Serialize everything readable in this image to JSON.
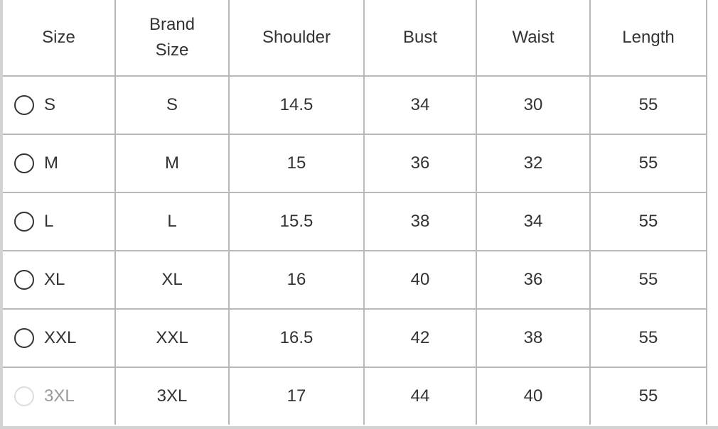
{
  "table": {
    "headers": {
      "size": "Size",
      "brand_size_line1": "Brand",
      "brand_size_line2": "Size",
      "shoulder": "Shoulder",
      "bust": "Bust",
      "waist": "Waist",
      "length": "Length"
    },
    "rows": [
      {
        "size": "S",
        "brand_size": "S",
        "shoulder": "14.5",
        "bust": "34",
        "waist": "30",
        "length": "55",
        "available": true
      },
      {
        "size": "M",
        "brand_size": "M",
        "shoulder": "15",
        "bust": "36",
        "waist": "32",
        "length": "55",
        "available": true
      },
      {
        "size": "L",
        "brand_size": "L",
        "shoulder": "15.5",
        "bust": "38",
        "waist": "34",
        "length": "55",
        "available": true
      },
      {
        "size": "XL",
        "brand_size": "XL",
        "shoulder": "16",
        "bust": "40",
        "waist": "36",
        "length": "55",
        "available": true
      },
      {
        "size": "XXL",
        "brand_size": "XXL",
        "shoulder": "16.5",
        "bust": "42",
        "waist": "38",
        "length": "55",
        "available": true
      },
      {
        "size": "3XL",
        "brand_size": "3XL",
        "shoulder": "17",
        "bust": "44",
        "waist": "40",
        "length": "55",
        "available": false
      }
    ]
  },
  "colors": {
    "text": "#333333",
    "grid": "#b9b9b9",
    "disabled_text": "#999999",
    "disabled_radio": "#dddddd"
  },
  "icons": {
    "radio": "radio-button-unchecked-icon"
  }
}
